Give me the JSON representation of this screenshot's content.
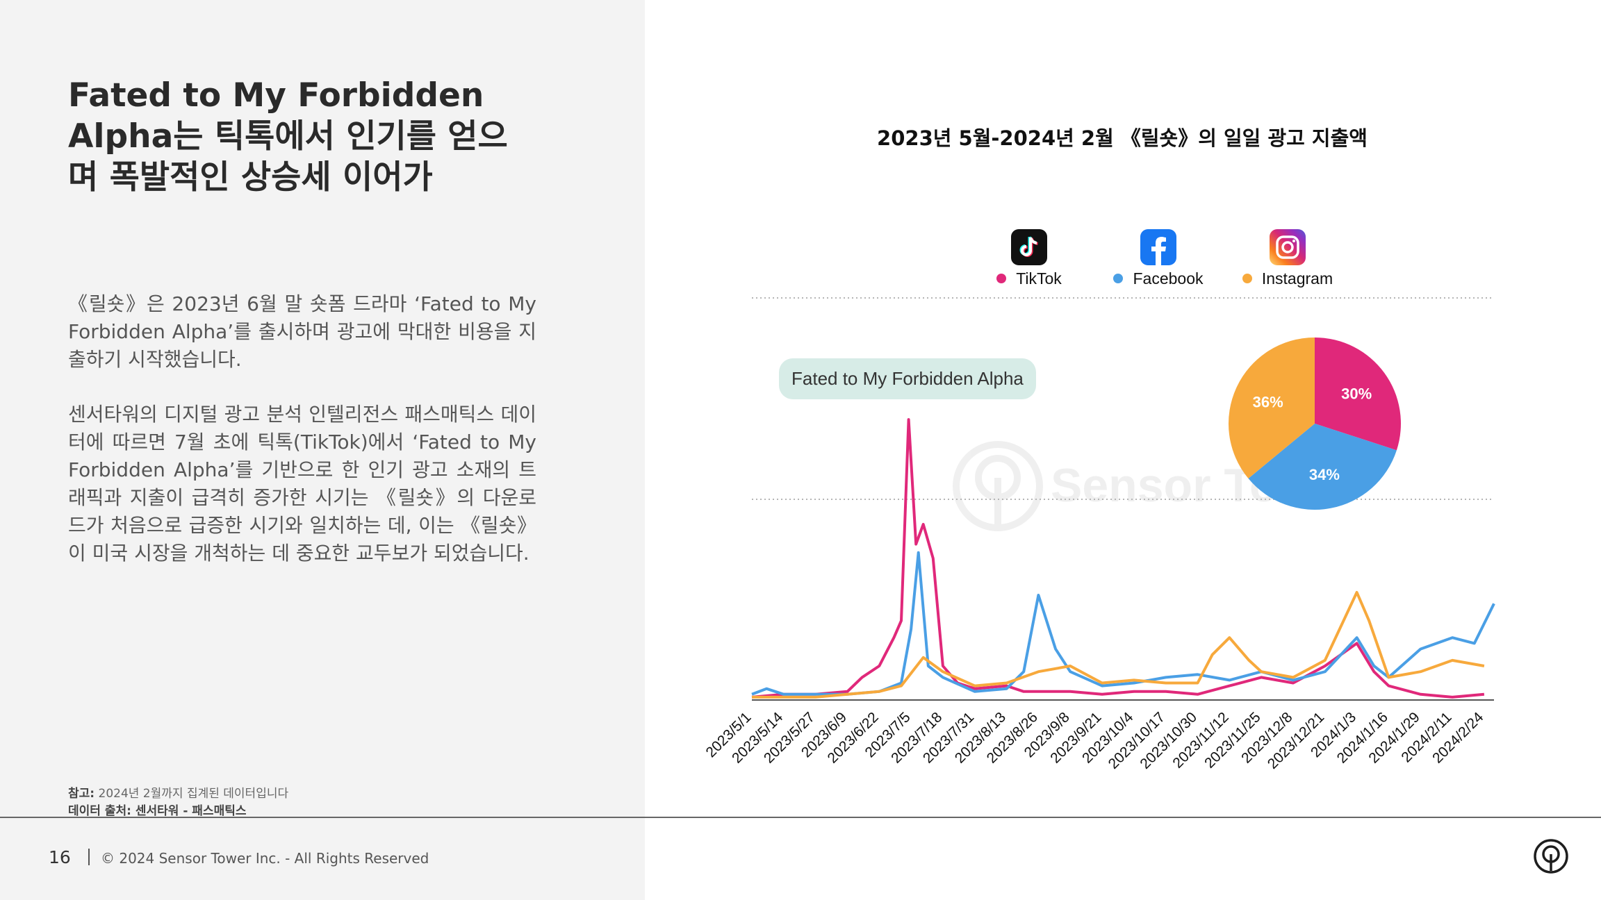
{
  "left": {
    "heading": "Fated to My Forbidden Alpha는 틱톡에서 인기를 얻으며 폭발적인 상승세 이어가",
    "paragraph1": "《릴숏》은 2023년 6월 말 숏폼 드라마 ‘Fated to My Forbidden Alpha’를 출시하며 광고에 막대한 비용을 지출하기 시작했습니다.",
    "paragraph2": "센서타워의 디지털 광고 분석 인텔리전스 패스매틱스 데이터에 따르면 7월 초에 틱톡(TikTok)에서 ‘Fated to My Forbidden Alpha’를 기반으로 한 인기 광고 소재의 트래픽과 지출이 급격히 증가한 시기는 《릴숏》의 다운로드가 처음으로 급증한 시기와 일치하는 데, 이는 《릴숏》이 미국 시장을 개척하는 데 중요한 교두보가 되었습니다.",
    "note_label": "참고:",
    "note_text": "2024년 2월까지 집계된 데이터입니다",
    "source": "데이터 출처: 센서타워 - 패스매틱스"
  },
  "footer": {
    "page_number": "16",
    "copyright": "© 2024 Sensor Tower Inc. - All Rights Reserved"
  },
  "watermark": "Sensor Tower",
  "colors": {
    "tiktok": "#e0287a",
    "facebook": "#4a9fe5",
    "instagram": "#f7a93c"
  },
  "legend": {
    "tiktok": {
      "label": "TikTok",
      "icon": "tiktok-logo-icon"
    },
    "facebook": {
      "label": "Facebook",
      "icon": "facebook-logo-icon"
    },
    "instagram": {
      "label": "Instagram",
      "icon": "instagram-logo-icon"
    }
  },
  "chart_data": [
    {
      "type": "line",
      "title": "2023년 5월-2024년 2월 《릴숏》의 일일 광고 지출액",
      "annotation": "Fated to My Forbidden Alpha",
      "x_tick_labels": [
        "2023/5/1",
        "2023/5/14",
        "2023/5/27",
        "2023/6/9",
        "2023/6/22",
        "2023/7/5",
        "2023/7/18",
        "2023/7/31",
        "2023/8/13",
        "2023/8/26",
        "2023/9/8",
        "2023/9/21",
        "2023/10/4",
        "2023/10/17",
        "2023/10/30",
        "2023/11/12",
        "2023/11/25",
        "2023/12/8",
        "2023/12/21",
        "2024/1/3",
        "2024/1/16",
        "2024/1/29",
        "2024/2/11",
        "2024/2/24"
      ],
      "y_axis_labels": "none",
      "grid": "dotted horizontal",
      "legend_position": "top",
      "note": "values are relative (no y-axis scale shown), estimated 0-100",
      "series": [
        {
          "name": "TikTok",
          "color": "#e0287a",
          "points": [
            [
              "2023/5/1",
              1
            ],
            [
              "2023/5/14",
              2
            ],
            [
              "2023/5/27",
              2
            ],
            [
              "2023/6/9",
              3
            ],
            [
              "2023/6/15",
              8
            ],
            [
              "2023/6/22",
              12
            ],
            [
              "2023/6/28",
              22
            ],
            [
              "2023/7/1",
              28
            ],
            [
              "2023/7/4",
              99
            ],
            [
              "2023/7/7",
              55
            ],
            [
              "2023/7/10",
              62
            ],
            [
              "2023/7/14",
              50
            ],
            [
              "2023/7/18",
              12
            ],
            [
              "2023/7/24",
              6
            ],
            [
              "2023/7/31",
              4
            ],
            [
              "2023/8/13",
              5
            ],
            [
              "2023/8/20",
              3
            ],
            [
              "2023/8/26",
              3
            ],
            [
              "2023/9/8",
              3
            ],
            [
              "2023/9/21",
              2
            ],
            [
              "2023/10/4",
              3
            ],
            [
              "2023/10/17",
              3
            ],
            [
              "2023/10/30",
              2
            ],
            [
              "2023/11/12",
              5
            ],
            [
              "2023/11/25",
              8
            ],
            [
              "2023/12/8",
              6
            ],
            [
              "2023/12/21",
              12
            ],
            [
              "2024/1/3",
              20
            ],
            [
              "2024/1/10",
              10
            ],
            [
              "2024/1/16",
              5
            ],
            [
              "2024/1/29",
              2
            ],
            [
              "2024/2/11",
              1
            ],
            [
              "2024/2/24",
              2
            ]
          ]
        },
        {
          "name": "Facebook",
          "color": "#4a9fe5",
          "points": [
            [
              "2023/5/1",
              2
            ],
            [
              "2023/5/7",
              4
            ],
            [
              "2023/5/14",
              2
            ],
            [
              "2023/5/27",
              2
            ],
            [
              "2023/6/9",
              2
            ],
            [
              "2023/6/22",
              3
            ],
            [
              "2023/7/1",
              6
            ],
            [
              "2023/7/5",
              25
            ],
            [
              "2023/7/8",
              52
            ],
            [
              "2023/7/12",
              12
            ],
            [
              "2023/7/18",
              8
            ],
            [
              "2023/7/31",
              3
            ],
            [
              "2023/8/13",
              4
            ],
            [
              "2023/8/20",
              10
            ],
            [
              "2023/8/26",
              37
            ],
            [
              "2023/9/2",
              18
            ],
            [
              "2023/9/8",
              10
            ],
            [
              "2023/9/21",
              5
            ],
            [
              "2023/10/4",
              6
            ],
            [
              "2023/10/17",
              8
            ],
            [
              "2023/10/30",
              9
            ],
            [
              "2023/11/12",
              7
            ],
            [
              "2023/11/25",
              10
            ],
            [
              "2023/12/8",
              7
            ],
            [
              "2023/12/21",
              10
            ],
            [
              "2024/1/3",
              22
            ],
            [
              "2024/1/10",
              12
            ],
            [
              "2024/1/16",
              8
            ],
            [
              "2024/1/29",
              18
            ],
            [
              "2024/2/11",
              22
            ],
            [
              "2024/2/20",
              20
            ],
            [
              "2024/2/28",
              34
            ]
          ]
        },
        {
          "name": "Instagram",
          "color": "#f7a93c",
          "points": [
            [
              "2023/5/1",
              1
            ],
            [
              "2023/5/14",
              1
            ],
            [
              "2023/5/27",
              1
            ],
            [
              "2023/6/9",
              2
            ],
            [
              "2023/6/22",
              3
            ],
            [
              "2023/7/1",
              5
            ],
            [
              "2023/7/10",
              15
            ],
            [
              "2023/7/18",
              10
            ],
            [
              "2023/7/31",
              5
            ],
            [
              "2023/8/13",
              6
            ],
            [
              "2023/8/26",
              10
            ],
            [
              "2023/9/8",
              12
            ],
            [
              "2023/9/21",
              6
            ],
            [
              "2023/10/4",
              7
            ],
            [
              "2023/10/17",
              6
            ],
            [
              "2023/10/30",
              6
            ],
            [
              "2023/11/5",
              16
            ],
            [
              "2023/11/12",
              22
            ],
            [
              "2023/11/20",
              14
            ],
            [
              "2023/11/25",
              10
            ],
            [
              "2023/12/8",
              8
            ],
            [
              "2023/12/21",
              14
            ],
            [
              "2024/1/3",
              38
            ],
            [
              "2024/1/8",
              28
            ],
            [
              "2024/1/16",
              8
            ],
            [
              "2024/1/29",
              10
            ],
            [
              "2024/2/11",
              14
            ],
            [
              "2024/2/24",
              12
            ]
          ]
        }
      ]
    },
    {
      "type": "pie",
      "categories": [
        "TikTok",
        "Facebook",
        "Instagram"
      ],
      "values": [
        30,
        34,
        36
      ],
      "labels": [
        "30%",
        "34%",
        "36%"
      ],
      "colors": [
        "#e0287a",
        "#4a9fe5",
        "#f7a93c"
      ]
    }
  ]
}
